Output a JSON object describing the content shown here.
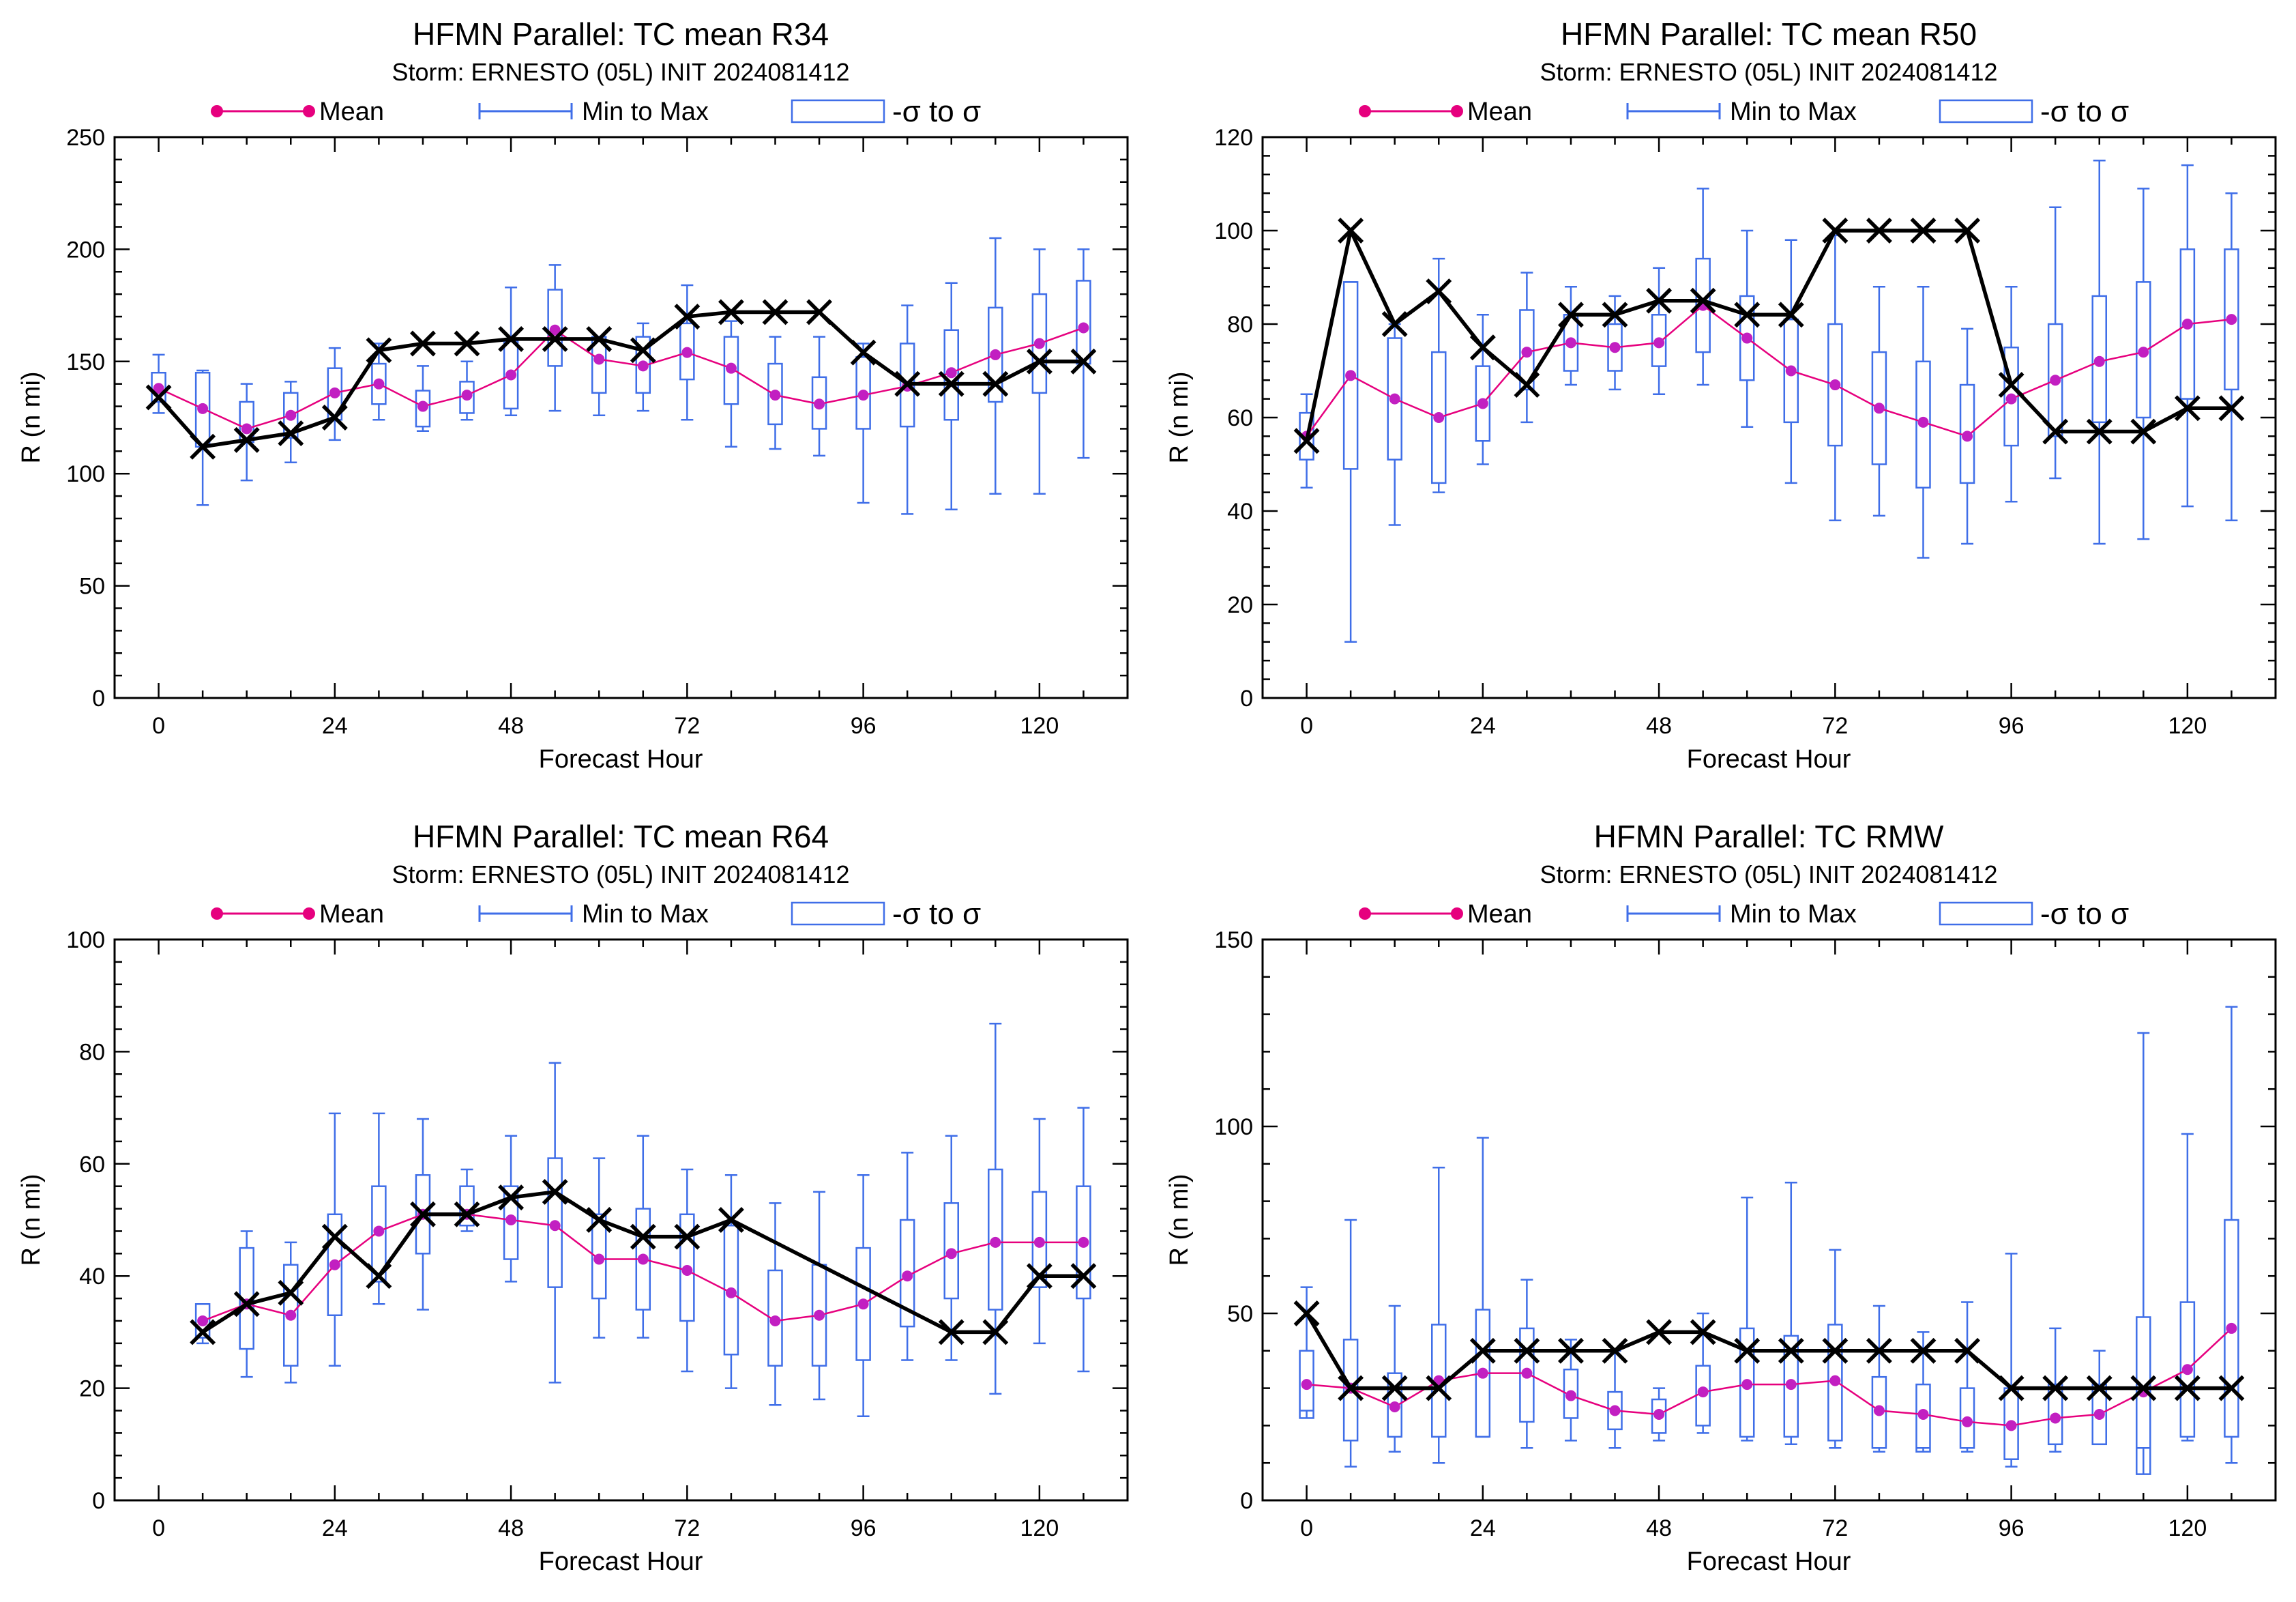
{
  "figure": {
    "legend": {
      "mean_label": "Mean",
      "minmax_label": "Min to Max",
      "sigma_label": "-σ to σ"
    },
    "colors": {
      "mean": "#e6007e",
      "mean_dot": "#c21fc1",
      "box": "#3f6ee8",
      "obs": "#000000"
    }
  },
  "chart_data": [
    {
      "type": "box",
      "title": "HFMN Parallel: TC mean R34",
      "subtitle": "Storm: ERNESTO (05L) INIT 2024081412",
      "xlabel": "Forecast Hour",
      "ylabel": "R (n mi)",
      "xlim": [
        -6,
        132
      ],
      "ylim": [
        0,
        250
      ],
      "xticks": [
        0,
        24,
        48,
        72,
        96,
        120
      ],
      "yticks": [
        0,
        50,
        100,
        150,
        200,
        250
      ],
      "x": [
        0,
        6,
        12,
        18,
        24,
        30,
        36,
        42,
        48,
        54,
        60,
        66,
        72,
        78,
        84,
        90,
        96,
        102,
        108,
        114,
        120,
        126
      ],
      "mean": [
        138,
        129,
        120,
        126,
        136,
        140,
        130,
        135,
        144,
        164,
        151,
        148,
        154,
        147,
        135,
        131,
        135,
        139,
        145,
        153,
        158,
        165
      ],
      "min": [
        127,
        86,
        97,
        105,
        115,
        124,
        119,
        124,
        126,
        128,
        126,
        128,
        124,
        112,
        111,
        108,
        87,
        82,
        84,
        91,
        91,
        107
      ],
      "max": [
        153,
        146,
        140,
        141,
        156,
        158,
        148,
        150,
        183,
        193,
        161,
        167,
        184,
        168,
        161,
        161,
        158,
        175,
        185,
        205,
        200,
        200
      ],
      "box_low": [
        132,
        112,
        114,
        116,
        124,
        131,
        121,
        127,
        129,
        148,
        136,
        136,
        142,
        131,
        122,
        120,
        120,
        121,
        124,
        132,
        136,
        149
      ],
      "box_high": [
        145,
        145,
        132,
        136,
        147,
        149,
        137,
        141,
        159,
        182,
        161,
        161,
        167,
        161,
        149,
        143,
        152,
        158,
        164,
        174,
        180,
        186
      ],
      "observed_x": [
        0,
        6,
        12,
        18,
        24,
        30,
        36,
        42,
        48,
        54,
        60,
        66,
        72,
        78,
        84,
        90,
        96,
        102,
        108,
        114,
        120,
        126
      ],
      "observed": [
        134,
        112,
        115,
        118,
        125,
        155,
        158,
        158,
        160,
        160,
        160,
        155,
        170,
        172,
        172,
        172,
        154,
        140,
        140,
        140,
        150,
        150
      ]
    },
    {
      "type": "box",
      "title": "HFMN Parallel: TC mean R50",
      "subtitle": "Storm: ERNESTO (05L) INIT 2024081412",
      "xlabel": "Forecast Hour",
      "ylabel": "R (n mi)",
      "xlim": [
        -6,
        132
      ],
      "ylim": [
        0,
        120
      ],
      "xticks": [
        0,
        24,
        48,
        72,
        96,
        120
      ],
      "yticks": [
        0,
        20,
        40,
        60,
        80,
        100,
        120
      ],
      "x": [
        0,
        6,
        12,
        18,
        24,
        30,
        36,
        42,
        48,
        54,
        60,
        66,
        72,
        78,
        84,
        90,
        96,
        102,
        108,
        114,
        120,
        126
      ],
      "mean": [
        56,
        69,
        64,
        60,
        63,
        74,
        76,
        75,
        76,
        84,
        77,
        70,
        67,
        62,
        59,
        56,
        64,
        68,
        72,
        74,
        80,
        81
      ],
      "min": [
        45,
        12,
        37,
        44,
        50,
        59,
        67,
        66,
        65,
        67,
        58,
        46,
        38,
        39,
        30,
        33,
        42,
        47,
        33,
        34,
        41,
        38
      ],
      "max": [
        65,
        89,
        80,
        94,
        82,
        91,
        88,
        86,
        92,
        109,
        100,
        98,
        99,
        88,
        88,
        79,
        88,
        105,
        115,
        109,
        114,
        108
      ],
      "box_low": [
        51,
        49,
        51,
        46,
        55,
        66,
        70,
        70,
        71,
        74,
        68,
        59,
        54,
        50,
        45,
        46,
        54,
        56,
        59,
        60,
        64,
        66
      ],
      "box_high": [
        61,
        89,
        77,
        74,
        71,
        83,
        82,
        80,
        82,
        94,
        86,
        81,
        80,
        74,
        72,
        67,
        75,
        80,
        86,
        89,
        96,
        96
      ],
      "observed_x": [
        0,
        6,
        12,
        18,
        24,
        30,
        36,
        42,
        48,
        54,
        60,
        66,
        72,
        78,
        84,
        90,
        96,
        102,
        108,
        114,
        120,
        126
      ],
      "observed": [
        55,
        100,
        80,
        87,
        75,
        67,
        82,
        82,
        85,
        85,
        82,
        82,
        100,
        100,
        100,
        100,
        67,
        57,
        57,
        57,
        62,
        62
      ]
    },
    {
      "type": "box",
      "title": "HFMN Parallel: TC mean R64",
      "subtitle": "Storm: ERNESTO (05L) INIT 2024081412",
      "xlabel": "Forecast Hour",
      "ylabel": "R (n mi)",
      "xlim": [
        -6,
        132
      ],
      "ylim": [
        0,
        100
      ],
      "xticks": [
        0,
        24,
        48,
        72,
        96,
        120
      ],
      "yticks": [
        0,
        20,
        40,
        60,
        80,
        100
      ],
      "x": [
        6,
        12,
        18,
        24,
        30,
        36,
        42,
        48,
        54,
        60,
        66,
        72,
        78,
        84,
        90,
        96,
        102,
        108,
        114,
        120,
        126
      ],
      "mean": [
        32,
        35,
        33,
        42,
        48,
        51,
        51,
        50,
        49,
        43,
        43,
        41,
        37,
        32,
        33,
        35,
        40,
        44,
        46,
        46,
        46
      ],
      "min": [
        28,
        22,
        21,
        24,
        35,
        34,
        48,
        39,
        21,
        29,
        29,
        23,
        20,
        17,
        18,
        15,
        25,
        25,
        19,
        28,
        23
      ],
      "max": [
        35,
        48,
        46,
        69,
        69,
        68,
        59,
        65,
        78,
        61,
        65,
        59,
        58,
        53,
        55,
        58,
        62,
        65,
        85,
        68,
        70
      ],
      "box_low": [
        29,
        27,
        24,
        33,
        39,
        44,
        49,
        43,
        38,
        36,
        34,
        32,
        26,
        24,
        24,
        25,
        31,
        36,
        34,
        38,
        36
      ],
      "box_high": [
        35,
        45,
        42,
        51,
        56,
        58,
        56,
        56,
        61,
        51,
        52,
        51,
        49,
        41,
        42,
        45,
        50,
        53,
        59,
        55,
        56
      ],
      "observed_x": [
        6,
        12,
        18,
        24,
        30,
        36,
        42,
        48,
        54,
        60,
        66,
        72,
        78,
        108,
        114,
        120,
        126
      ],
      "observed": [
        30,
        35,
        37,
        47,
        40,
        51,
        51,
        54,
        55,
        50,
        47,
        47,
        50,
        30,
        30,
        40,
        40
      ]
    },
    {
      "type": "box",
      "title": "HFMN Parallel: TC RMW",
      "subtitle": "Storm: ERNESTO (05L) INIT 2024081412",
      "xlabel": "Forecast Hour",
      "ylabel": "R (n mi)",
      "xlim": [
        -6,
        132
      ],
      "ylim": [
        0,
        150
      ],
      "xticks": [
        0,
        24,
        48,
        72,
        96,
        120
      ],
      "yticks": [
        0,
        50,
        100,
        150
      ],
      "x": [
        0,
        6,
        12,
        18,
        24,
        30,
        36,
        42,
        48,
        54,
        60,
        66,
        72,
        78,
        84,
        90,
        96,
        102,
        108,
        114,
        120,
        126
      ],
      "mean": [
        31,
        30,
        25,
        32,
        34,
        34,
        28,
        24,
        23,
        29,
        31,
        31,
        32,
        24,
        23,
        21,
        20,
        22,
        23,
        29,
        35,
        46
      ],
      "min": [
        24,
        9,
        13,
        10,
        17,
        14,
        16,
        14,
        16,
        18,
        16,
        15,
        14,
        13,
        14,
        13,
        9,
        13,
        15,
        14,
        16,
        10
      ],
      "max": [
        57,
        75,
        52,
        89,
        97,
        59,
        43,
        40,
        30,
        50,
        81,
        85,
        67,
        52,
        45,
        53,
        66,
        46,
        40,
        125,
        98,
        132
      ],
      "box_low": [
        22,
        16,
        17,
        17,
        17,
        21,
        22,
        19,
        18,
        20,
        17,
        17,
        16,
        14,
        13,
        14,
        11,
        15,
        15,
        7,
        17,
        17
      ],
      "box_high": [
        40,
        43,
        34,
        47,
        51,
        46,
        35,
        29,
        27,
        36,
        46,
        44,
        47,
        33,
        31,
        30,
        30,
        31,
        31,
        49,
        53,
        75
      ],
      "observed_x": [
        0,
        6,
        12,
        18,
        24,
        30,
        36,
        42,
        48,
        54,
        60,
        66,
        72,
        78,
        84,
        90,
        96,
        102,
        108,
        114,
        120,
        126
      ],
      "observed": [
        50,
        30,
        30,
        30,
        40,
        40,
        40,
        40,
        45,
        45,
        40,
        40,
        40,
        40,
        40,
        40,
        30,
        30,
        30,
        30,
        30,
        30
      ]
    }
  ]
}
